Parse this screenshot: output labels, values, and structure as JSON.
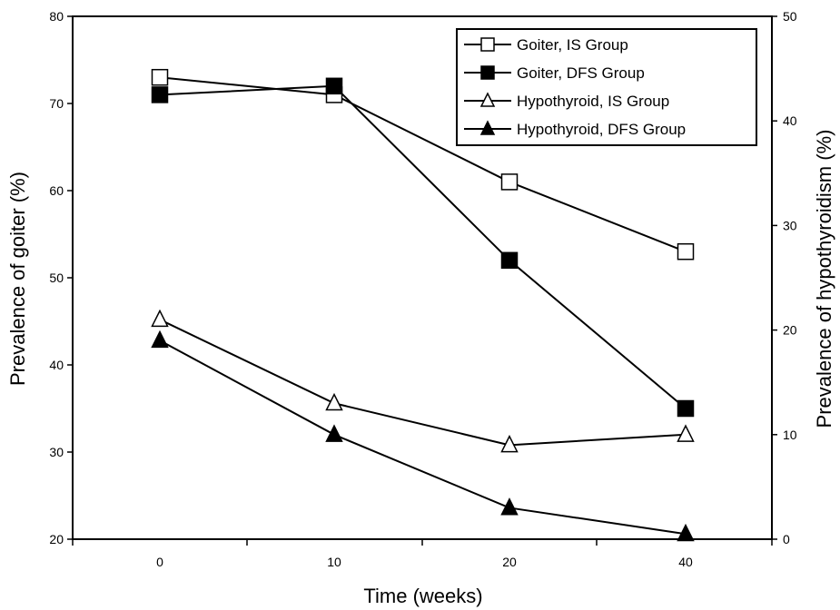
{
  "chart_data": {
    "type": "line",
    "title": "",
    "xlabel": "Time (weeks)",
    "ylabel_left": "Prevalence of goiter (%)",
    "ylabel_right": "Prevalence of hypothyroidism (%)",
    "categories": [
      "0",
      "10",
      "20",
      "40"
    ],
    "ylim_left": [
      20,
      80
    ],
    "yticks_left": [
      20,
      30,
      40,
      50,
      60,
      70,
      80
    ],
    "ylim_right": [
      0,
      50
    ],
    "yticks_right": [
      0,
      10,
      20,
      30,
      40,
      50
    ],
    "grid": false,
    "legend_position": "top-right",
    "series": [
      {
        "name": "Goiter, IS Group",
        "axis": "left",
        "marker": "square-open",
        "values": [
          73,
          71,
          61,
          53
        ]
      },
      {
        "name": "Goiter, DFS Group",
        "axis": "left",
        "marker": "square-filled",
        "values": [
          71,
          72,
          52,
          35
        ]
      },
      {
        "name": "Hypothyroid, IS Group",
        "axis": "right",
        "marker": "triangle-open",
        "values": [
          21,
          13,
          9,
          10
        ]
      },
      {
        "name": "Hypothyroid, DFS Group",
        "axis": "right",
        "marker": "triangle-filled",
        "values": [
          19,
          10,
          3,
          0.5
        ]
      }
    ],
    "colors": {
      "line": "#000000",
      "marker_fill": "#000000",
      "marker_open": "#ffffff"
    }
  }
}
